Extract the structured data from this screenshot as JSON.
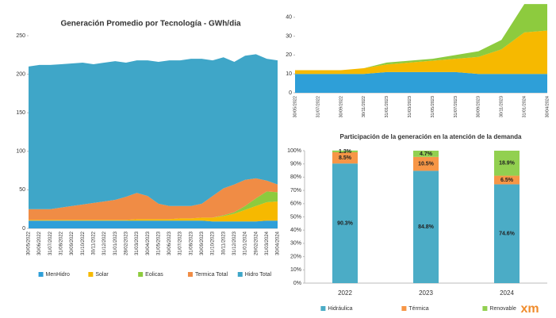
{
  "chart_data": [
    {
      "type": "area",
      "stacked": true,
      "title": "Generación Promedio por Tecnología - GWh/dia",
      "categories": [
        "30/05/2022",
        "30/06/2022",
        "31/07/2022",
        "31/08/2022",
        "30/09/2022",
        "31/10/2022",
        "30/11/2022",
        "31/12/2022",
        "31/01/2023",
        "28/02/2023",
        "31/03/2023",
        "30/04/2023",
        "31/05/2023",
        "30/06/2023",
        "31/07/2023",
        "31/08/2023",
        "30/09/2023",
        "31/10/2023",
        "30/11/2023",
        "31/12/2023",
        "31/01/2024",
        "29/02/2024",
        "31/03/2024",
        "30/04/2024"
      ],
      "series": [
        {
          "name": "MenHidro",
          "color": "#2e9fd8",
          "values": [
            10,
            10,
            10,
            10,
            10,
            10,
            10,
            10,
            10,
            10,
            10,
            10,
            10,
            10,
            10,
            10,
            10,
            9,
            9,
            9,
            9,
            9,
            10,
            10
          ]
        },
        {
          "name": "Solar",
          "color": "#f6b900",
          "values": [
            1,
            1,
            1,
            1,
            1,
            1,
            1,
            1,
            1,
            1,
            2,
            2,
            2,
            2,
            3,
            3,
            4,
            5,
            7,
            10,
            15,
            20,
            24,
            25
          ]
        },
        {
          "name": "Eolicas",
          "color": "#8dcb3e",
          "values": [
            0,
            0,
            0,
            0,
            0,
            0,
            0,
            0,
            0,
            0,
            0,
            0,
            0,
            0,
            0,
            0,
            0,
            0,
            1,
            2,
            5,
            10,
            14,
            12
          ]
        },
        {
          "name": "Termica Total",
          "color": "#f08c45",
          "values": [
            14,
            14,
            14,
            16,
            18,
            20,
            22,
            24,
            26,
            30,
            34,
            30,
            20,
            17,
            16,
            16,
            18,
            28,
            35,
            36,
            34,
            26,
            14,
            10
          ]
        },
        {
          "name": "Hidro Total",
          "color": "#3fa6c8",
          "values": [
            185,
            187,
            187,
            186,
            185,
            184,
            180,
            180,
            180,
            174,
            172,
            176,
            184,
            189,
            189,
            191,
            188,
            176,
            170,
            159,
            161,
            161,
            158,
            161
          ]
        }
      ],
      "ylim": [
        0,
        250
      ],
      "yticks": [
        0,
        50,
        100,
        150,
        200,
        250
      ],
      "legend": "bottom"
    },
    {
      "type": "area",
      "stacked": true,
      "categories": [
        "30/05/2022",
        "31/07/2022",
        "30/09/2022",
        "30/11/2022",
        "31/01/2023",
        "31/03/2023",
        "31/05/2023",
        "31/07/2023",
        "30/09/2023",
        "30/11/2023",
        "31/01/2024",
        "30/04/2024"
      ],
      "series": [
        {
          "color": "#2e9fd8",
          "values": [
            10,
            10,
            10,
            10,
            11,
            11,
            11,
            11,
            10,
            10,
            10,
            10
          ]
        },
        {
          "color": "#f6b900",
          "values": [
            2,
            2,
            2,
            3,
            4,
            5,
            6,
            7,
            9,
            13,
            22,
            23
          ]
        },
        {
          "color": "#8dcb3e",
          "values": [
            0,
            0,
            0,
            0,
            1,
            1,
            1,
            2,
            3,
            5,
            15,
            14
          ]
        }
      ],
      "ylim": [
        0,
        50
      ],
      "yticks": [
        0,
        10,
        20,
        30,
        40
      ]
    },
    {
      "type": "bar",
      "stacked": true,
      "title": "Participación de la generación en la atención de la demanda",
      "categories": [
        "2022",
        "2023",
        "2024"
      ],
      "series": [
        {
          "name": "Hidráulica",
          "color": "#4bacc6",
          "values": [
            90.3,
            84.8,
            74.6
          ],
          "value_labels": [
            "90.3%",
            "84.8%",
            "74.6%"
          ]
        },
        {
          "name": "Térmica",
          "color": "#f79646",
          "values": [
            8.5,
            10.5,
            6.5
          ],
          "value_labels": [
            "8.5%",
            "10.5%",
            "6.5%"
          ]
        },
        {
          "name": "Renovable",
          "color": "#92d050",
          "values": [
            1.3,
            4.7,
            18.9
          ],
          "value_labels": [
            "1.3%",
            "4.7%",
            "18.9%"
          ]
        }
      ],
      "ylim": [
        0,
        100
      ],
      "yticks": [
        {
          "value": 0,
          "label": "0%"
        },
        {
          "value": 10,
          "label": "10%"
        },
        {
          "value": 20,
          "label": "20%"
        },
        {
          "value": 30,
          "label": "30%"
        },
        {
          "value": 40,
          "label": "40%"
        },
        {
          "value": 50,
          "label": "50%"
        },
        {
          "value": 60,
          "label": "60%"
        },
        {
          "value": 70,
          "label": "70%"
        },
        {
          "value": 80,
          "label": "80%"
        },
        {
          "value": 90,
          "label": "90%"
        },
        {
          "value": 100,
          "label": "100%"
        }
      ],
      "legend": "bottom"
    }
  ],
  "logo": "xm"
}
